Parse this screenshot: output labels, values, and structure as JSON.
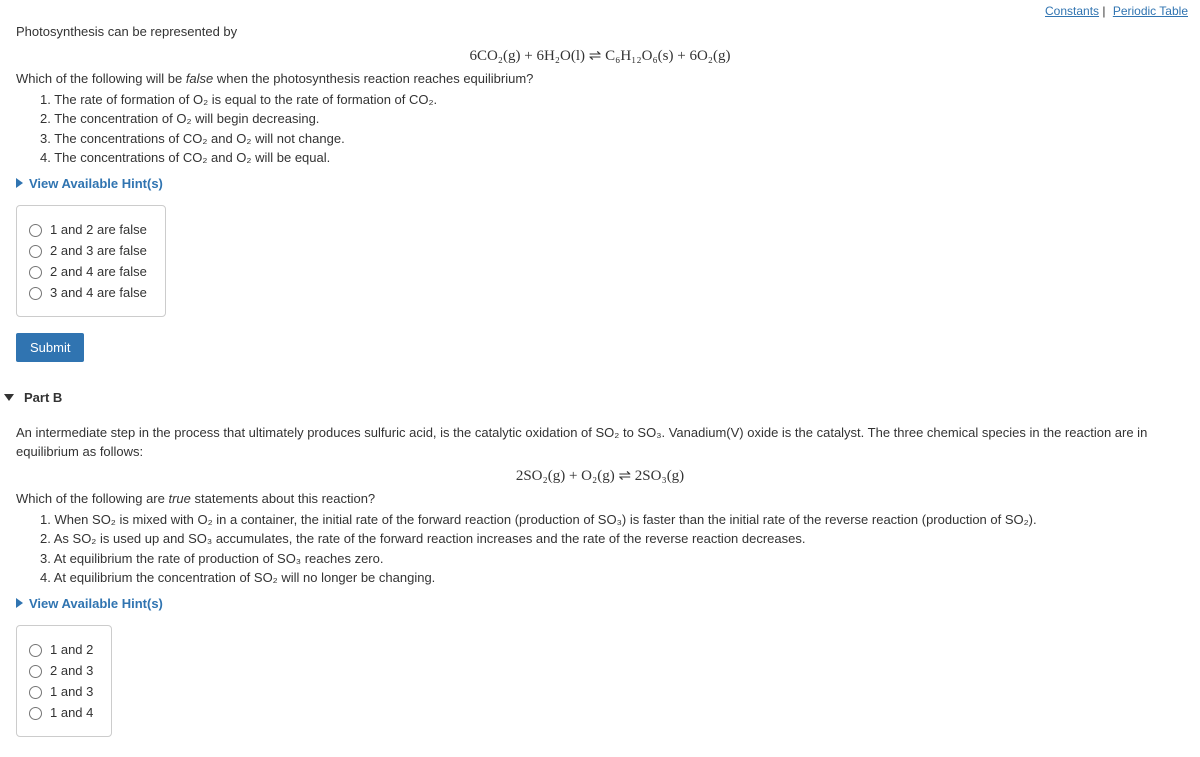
{
  "topLinks": {
    "constants": "Constants",
    "periodic": "Periodic Table"
  },
  "partA": {
    "intro": "Photosynthesis can be represented by",
    "equation": "6CO₂(g) + 6H₂O(l) ⇌ C₆H₁₂O₆(s) + 6O₂(g)",
    "question_prefix": "Which of the following will be ",
    "question_italic": "false",
    "question_suffix": " when the photosynthesis reaction reaches equilibrium?",
    "statements": [
      "1. The rate of formation of O₂ is equal to the rate of formation of CO₂.",
      "2. The concentration of O₂ will begin decreasing.",
      "3. The concentrations of CO₂ and O₂ will not change.",
      "4. The concentrations of CO₂ and O₂ will be equal."
    ],
    "hints": "View Available Hint(s)",
    "options": [
      "1 and 2 are false",
      "2 and 3 are false",
      "2 and 4 are false",
      "3 and 4 are false"
    ],
    "submit": "Submit"
  },
  "partB": {
    "header": "Part B",
    "intro": "An intermediate step in the process that ultimately produces sulfuric acid, is the catalytic oxidation of SO₂ to SO₃. Vanadium(V) oxide is the catalyst. The three chemical species in the reaction are in equilibrium as follows:",
    "equation": "2SO₂(g) + O₂(g) ⇌ 2SO₃(g)",
    "question_prefix": "Which of the following are ",
    "question_italic": "true",
    "question_suffix": " statements about this reaction?",
    "statements": [
      "1. When SO₂ is mixed with O₂ in a container, the initial rate of the forward reaction (production of SO₃) is faster than the initial rate of the reverse reaction (production of SO₂).",
      "2. As SO₂ is used up and SO₃ accumulates, the rate of the forward reaction increases and the rate of the reverse reaction decreases.",
      "3. At equilibrium the rate of production of SO₃ reaches zero.",
      "4. At equilibrium the concentration of SO₂ will no longer be changing."
    ],
    "hints": "View Available Hint(s)",
    "options": [
      "1 and 2",
      "2 and 3",
      "1 and 3",
      "1 and 4"
    ]
  },
  "colors": {
    "link": "#3074b1",
    "submit_bg": "#3074b1",
    "border": "#ccc"
  }
}
